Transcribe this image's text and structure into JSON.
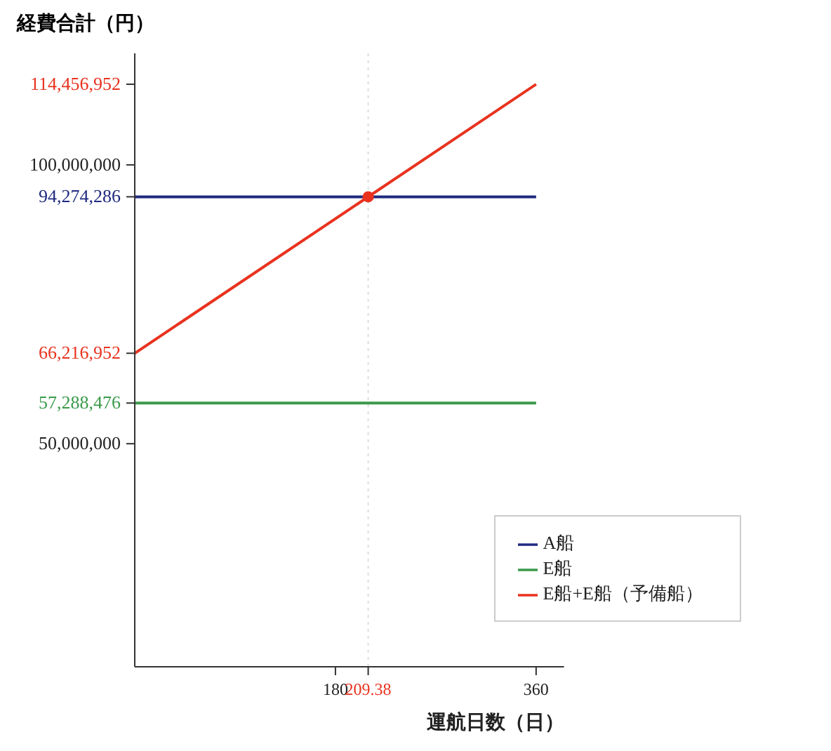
{
  "chart_data": {
    "type": "line",
    "xlabel": "運航日数（日）",
    "ylabel": "経費合計（円）",
    "xlim": [
      0,
      385
    ],
    "xticks": [
      180,
      209.38,
      360
    ],
    "ylim": [
      10000000,
      120000000
    ],
    "yticks": [
      {
        "value": 50000000,
        "label": "50,000,000"
      },
      {
        "value": 57288476,
        "label": "57,288,476"
      },
      {
        "value": 66216952,
        "label": "66,216,952"
      },
      {
        "value": 94274286,
        "label": "94,274,286"
      },
      {
        "value": 100000000,
        "label": "100,000,000"
      },
      {
        "value": 114456952,
        "label": "114,456,952"
      }
    ],
    "grid": false,
    "legend": "bottom right",
    "line_style": "solid",
    "ref_lines": [
      {
        "axis": "x",
        "value": 209.38,
        "color": "#dddddd",
        "line_style": "dotted"
      }
    ],
    "series": [
      {
        "name": "A船",
        "color": "#1f2a80",
        "x": [
          0,
          360
        ],
        "values": [
          94274286,
          94274286
        ]
      },
      {
        "name": "E船",
        "color": "#3a9a4a",
        "x": [
          0,
          360
        ],
        "values": [
          57288476,
          57288476
        ]
      },
      {
        "name": "E船+E船（予備船）",
        "color": "#e8321e",
        "x": [
          0,
          360
        ],
        "values": [
          66216952,
          114456952
        ]
      },
      {
        "type": "scatter",
        "color": "#e8321e",
        "x": [
          209.38
        ],
        "values": [
          94274286
        ]
      }
    ]
  }
}
